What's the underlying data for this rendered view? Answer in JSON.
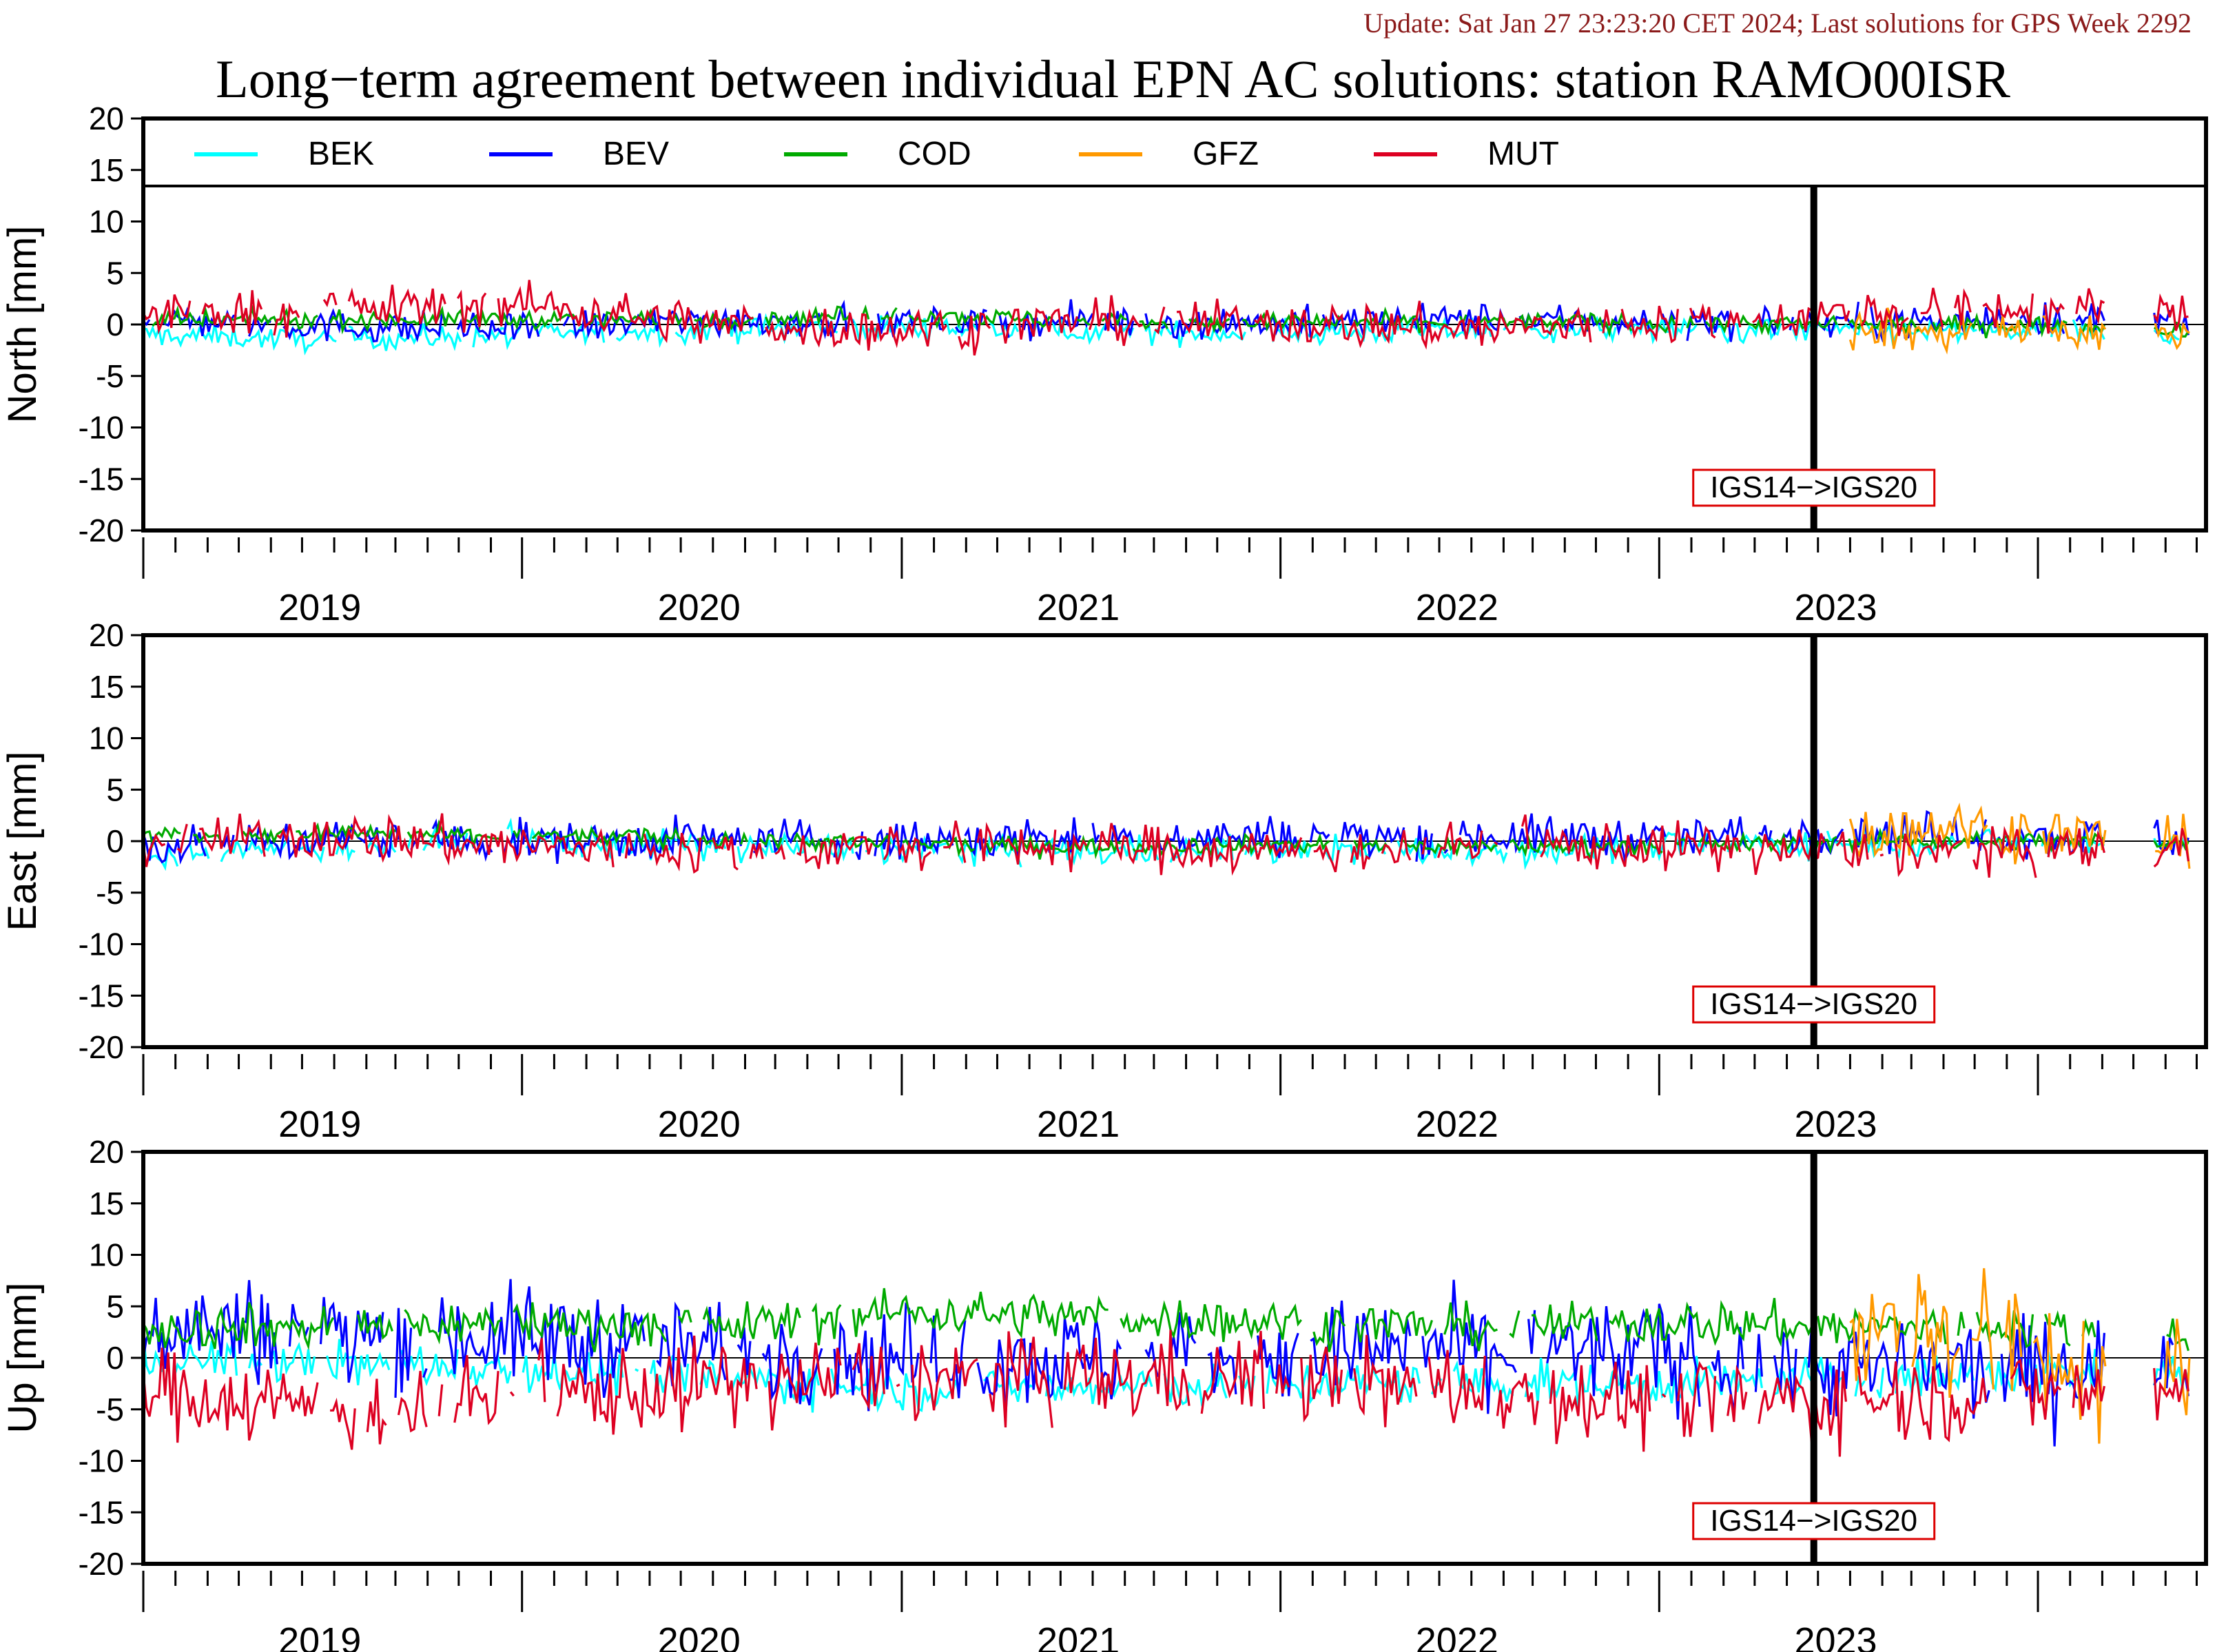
{
  "header": {
    "update_text": "Update: Sat Jan 27 23:23:20 CET 2024; Last solutions for GPS Week 2292",
    "title": "Long−term agreement between individual EPN AC solutions: station RAMO00ISR"
  },
  "colors": {
    "BEK": "#00ffff",
    "BEV": "#0000ff",
    "COD": "#00aa00",
    "GFZ": "#ff9900",
    "MUT": "#dd0022",
    "frame_marker_box": "#dd0000",
    "update_text": "#8b1a1a"
  },
  "frame_change": {
    "label": "IGS14−>IGS20",
    "date": "2022-11-27"
  },
  "chart_data": [
    {
      "type": "line",
      "ylabel": "North [mm]",
      "ylim": [
        -20,
        20
      ],
      "yticks": [
        20,
        15,
        10,
        5,
        0,
        -5,
        -10,
        -15,
        -20
      ],
      "xlim": [
        "2018-07-01",
        "2023-12-10"
      ],
      "xtick_labels": [
        "2019",
        "2020",
        "2021",
        "2022",
        "2023"
      ],
      "legend": {
        "position": "top",
        "entries": [
          "BEK",
          "BEV",
          "COD",
          "GFZ",
          "MUT"
        ]
      },
      "series": [
        {
          "name": "BEK",
          "x": [
            "2018-07",
            "2019-01",
            "2019-07",
            "2020-01",
            "2020-07",
            "2021-01",
            "2021-07",
            "2022-01",
            "2022-07",
            "2023-01",
            "2023-07",
            "2023-12"
          ],
          "values": [
            -1.0,
            -1.5,
            -1.0,
            -0.5,
            -0.2,
            -0.8,
            -0.8,
            -0.6,
            -0.5,
            -0.6,
            -0.7,
            -1.0
          ],
          "spread": 0.8
        },
        {
          "name": "BEV",
          "x": [
            "2018-07",
            "2019-01",
            "2019-07",
            "2020-01",
            "2020-07",
            "2021-01",
            "2021-07",
            "2022-01",
            "2022-07",
            "2023-01",
            "2023-07",
            "2023-12"
          ],
          "values": [
            0.5,
            -0.2,
            -0.5,
            0.5,
            0.2,
            0.3,
            0.2,
            0.5,
            0.3,
            0.2,
            0.5,
            0.3
          ],
          "spread": 1.1
        },
        {
          "name": "COD",
          "x": [
            "2018-07",
            "2019-01",
            "2019-07",
            "2020-01",
            "2020-07",
            "2021-01",
            "2021-07",
            "2022-01",
            "2022-07",
            "2023-01",
            "2023-07",
            "2023-12"
          ],
          "values": [
            0.3,
            0.5,
            0.5,
            0.5,
            1.0,
            0.3,
            0.2,
            0.3,
            0.2,
            0.0,
            0.0,
            -0.5
          ],
          "spread": 0.6
        },
        {
          "name": "GFZ",
          "x": [
            "2023-01",
            "2023-04",
            "2023-07",
            "2023-10",
            "2023-12"
          ],
          "values": [
            -0.5,
            -0.8,
            -0.5,
            -1.0,
            -1.0
          ],
          "spread": 1.4
        },
        {
          "name": "MUT",
          "x": [
            "2018-07",
            "2019-01",
            "2019-07",
            "2020-01",
            "2020-07",
            "2021-01",
            "2021-07",
            "2022-01",
            "2022-07",
            "2023-01",
            "2023-07",
            "2023-12"
          ],
          "values": [
            1.0,
            1.5,
            2.0,
            0.0,
            -0.5,
            0.3,
            0.2,
            -0.5,
            0.2,
            1.0,
            1.5,
            1.0
          ],
          "spread": 1.5
        }
      ]
    },
    {
      "type": "line",
      "ylabel": "East [mm]",
      "ylim": [
        -20,
        20
      ],
      "yticks": [
        20,
        15,
        10,
        5,
        0,
        -5,
        -10,
        -15,
        -20
      ],
      "xlim": [
        "2018-07-01",
        "2023-12-10"
      ],
      "xtick_labels": [
        "2019",
        "2020",
        "2021",
        "2022",
        "2023"
      ],
      "series": [
        {
          "name": "BEK",
          "x": [
            "2018-07",
            "2019-01",
            "2019-07",
            "2020-01",
            "2020-07",
            "2021-01",
            "2021-07",
            "2022-01",
            "2022-07",
            "2023-01",
            "2023-07",
            "2023-12"
          ],
          "values": [
            -1.5,
            -0.5,
            0.0,
            -0.5,
            -0.8,
            -1.0,
            -0.8,
            -1.0,
            -0.5,
            0.0,
            0.0,
            -0.5
          ],
          "spread": 1.0
        },
        {
          "name": "BEV",
          "x": [
            "2018-07",
            "2019-01",
            "2019-07",
            "2020-01",
            "2020-07",
            "2021-01",
            "2021-07",
            "2022-01",
            "2022-07",
            "2023-01",
            "2023-07",
            "2023-12"
          ],
          "values": [
            -0.5,
            0.2,
            0.0,
            0.2,
            0.0,
            0.3,
            0.5,
            0.5,
            0.3,
            1.0,
            0.5,
            0.0
          ],
          "spread": 1.4
        },
        {
          "name": "COD",
          "x": [
            "2018-07",
            "2019-01",
            "2019-07",
            "2020-01",
            "2020-07",
            "2021-01",
            "2021-07",
            "2022-01",
            "2022-07",
            "2023-01",
            "2023-07",
            "2023-12"
          ],
          "values": [
            0.5,
            0.8,
            0.5,
            0.3,
            -0.3,
            -0.5,
            -0.3,
            -0.5,
            -0.5,
            0.0,
            0.0,
            0.0
          ],
          "spread": 0.6
        },
        {
          "name": "GFZ",
          "x": [
            "2023-01",
            "2023-04",
            "2023-07",
            "2023-10",
            "2023-12"
          ],
          "values": [
            0.5,
            1.5,
            1.0,
            0.0,
            -0.5
          ],
          "spread": 1.8
        },
        {
          "name": "MUT",
          "x": [
            "2018-07",
            "2019-01",
            "2019-07",
            "2020-01",
            "2020-07",
            "2021-01",
            "2021-07",
            "2022-01",
            "2022-07",
            "2023-01",
            "2023-07",
            "2023-12"
          ],
          "values": [
            0.0,
            0.5,
            -0.5,
            -1.0,
            -0.5,
            -0.5,
            -1.0,
            -0.5,
            -0.5,
            -1.0,
            -1.0,
            -0.5
          ],
          "spread": 1.6
        }
      ]
    },
    {
      "type": "line",
      "ylabel": "Up [mm]",
      "ylim": [
        -20,
        20
      ],
      "yticks": [
        20,
        15,
        10,
        5,
        0,
        -5,
        -10,
        -15,
        -20
      ],
      "xlim": [
        "2018-07-01",
        "2023-12-10"
      ],
      "xtick_labels": [
        "2019",
        "2020",
        "2021",
        "2022",
        "2023"
      ],
      "series": [
        {
          "name": "BEK",
          "x": [
            "2018-07",
            "2019-01",
            "2019-07",
            "2020-01",
            "2020-07",
            "2021-01",
            "2021-07",
            "2022-01",
            "2022-07",
            "2023-01",
            "2023-07",
            "2023-12"
          ],
          "values": [
            0.0,
            -0.5,
            -1.0,
            -2.0,
            -3.0,
            -3.0,
            -2.5,
            -2.5,
            -2.5,
            -2.0,
            -1.5,
            -1.0
          ],
          "spread": 1.5
        },
        {
          "name": "BEV",
          "x": [
            "2018-07",
            "2019-01",
            "2019-07",
            "2020-01",
            "2020-07",
            "2021-01",
            "2021-07",
            "2022-01",
            "2022-07",
            "2023-01",
            "2023-07",
            "2023-12"
          ],
          "values": [
            3.0,
            2.5,
            2.0,
            1.0,
            0.0,
            0.0,
            0.5,
            1.0,
            0.5,
            -1.0,
            -1.0,
            0.0
          ],
          "spread": 3.5
        },
        {
          "name": "COD",
          "x": [
            "2018-07",
            "2019-01",
            "2019-07",
            "2020-01",
            "2020-07",
            "2021-01",
            "2021-07",
            "2022-01",
            "2022-07",
            "2023-01",
            "2023-07",
            "2023-12"
          ],
          "values": [
            3.0,
            3.0,
            3.5,
            3.0,
            4.5,
            4.0,
            3.5,
            3.0,
            3.5,
            3.0,
            3.0,
            2.5
          ],
          "spread": 1.5
        },
        {
          "name": "GFZ",
          "x": [
            "2023-01",
            "2023-04",
            "2023-07",
            "2023-10",
            "2023-12"
          ],
          "values": [
            2.0,
            3.0,
            0.0,
            -2.0,
            -3.0
          ],
          "spread": 4.5
        },
        {
          "name": "MUT",
          "x": [
            "2018-07",
            "2019-01",
            "2019-07",
            "2020-01",
            "2020-07",
            "2021-01",
            "2021-07",
            "2022-01",
            "2022-07",
            "2023-01",
            "2023-07",
            "2023-12"
          ],
          "values": [
            -3.0,
            -5.0,
            -4.0,
            -2.5,
            -2.0,
            -2.0,
            -2.0,
            -3.0,
            -4.5,
            -4.0,
            -3.5,
            -3.0
          ],
          "spread": 3.0
        }
      ]
    }
  ]
}
